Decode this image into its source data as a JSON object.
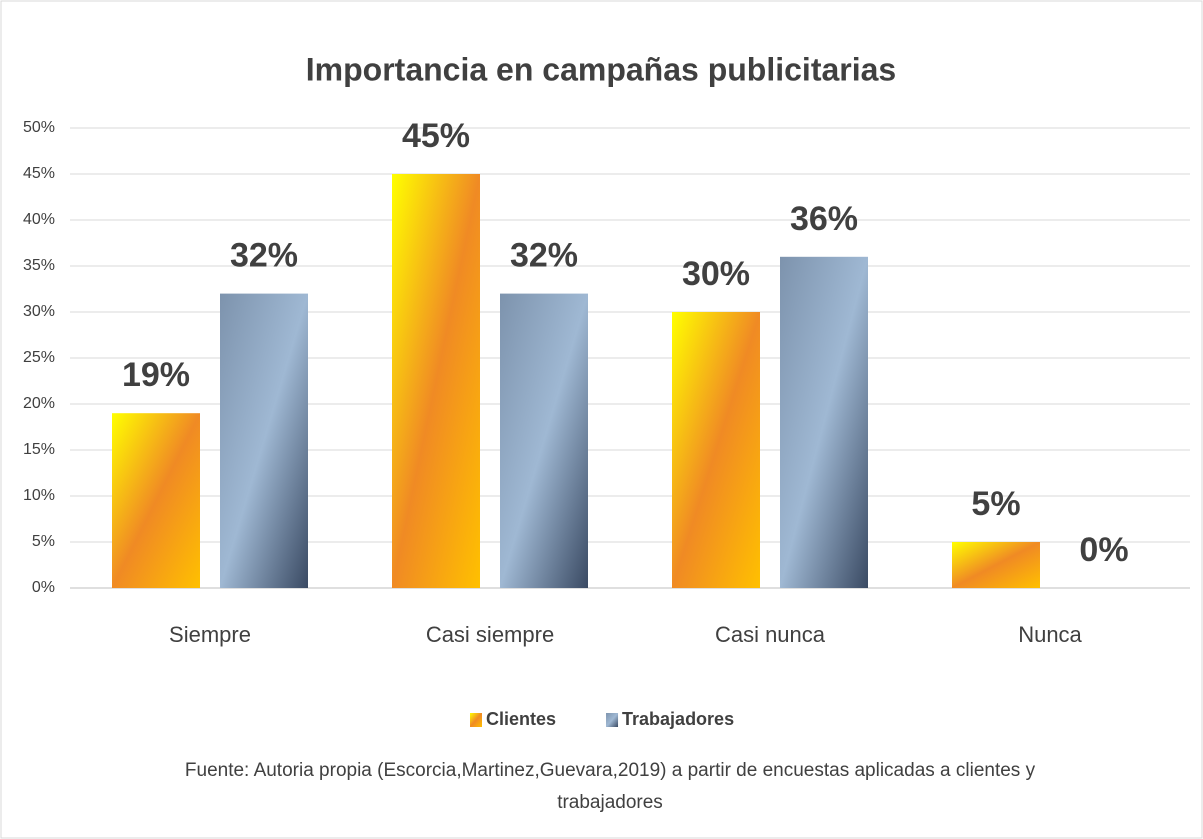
{
  "chart_data": {
    "type": "bar",
    "title": "Importancia en campañas publicitarias",
    "categories": [
      "Siempre",
      "Casi siempre",
      "Casi nunca",
      "Nunca"
    ],
    "series": [
      {
        "name": "Clientes",
        "color": "#f08a24",
        "values": [
          19,
          45,
          30,
          5
        ],
        "value_labels": [
          "19%",
          "45%",
          "30%",
          "5%"
        ]
      },
      {
        "name": "Trabajadores",
        "color": "#9fb8d3",
        "values": [
          32,
          32,
          36,
          0
        ],
        "value_labels": [
          "32%",
          "32%",
          "36%",
          "0%"
        ]
      }
    ],
    "ylim": [
      0,
      50
    ],
    "yticks": [
      {
        "value": 0,
        "label": "0%"
      },
      {
        "value": 5,
        "label": "5%"
      },
      {
        "value": 10,
        "label": "10%"
      },
      {
        "value": 15,
        "label": "15%"
      },
      {
        "value": 20,
        "label": "20%"
      },
      {
        "value": 25,
        "label": "25%"
      },
      {
        "value": 30,
        "label": "30%"
      },
      {
        "value": 35,
        "label": "35%"
      },
      {
        "value": 40,
        "label": "40%"
      },
      {
        "value": 45,
        "label": "45%"
      },
      {
        "value": 50,
        "label": "50%"
      }
    ],
    "grid": true,
    "legend": "bottom",
    "source": "Fuente: Autoria  propia  (Escorcia,Martinez,Guevara,2019) a partir de encuestas aplicadas a clientes y trabajadores"
  }
}
